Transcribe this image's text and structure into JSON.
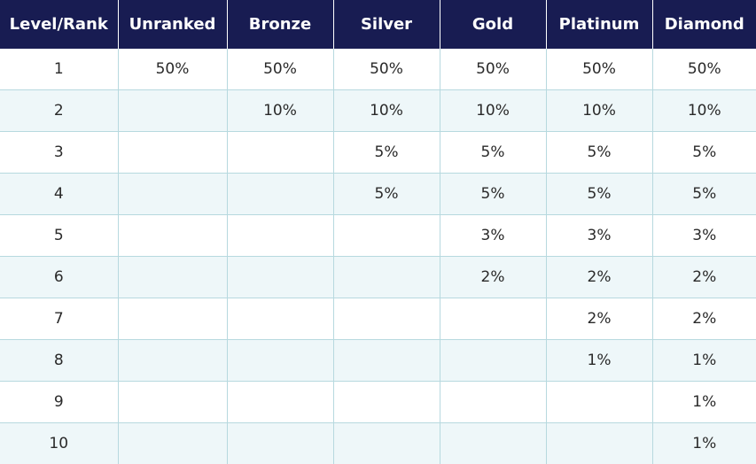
{
  "table": {
    "headers": [
      "Level/Rank",
      "Unranked",
      "Bronze",
      "Silver",
      "Gold",
      "Platinum",
      "Diamond"
    ],
    "rows": [
      [
        "1",
        "50%",
        "50%",
        "50%",
        "50%",
        "50%",
        "50%"
      ],
      [
        "2",
        "",
        "10%",
        "10%",
        "10%",
        "10%",
        "10%"
      ],
      [
        "3",
        "",
        "",
        "5%",
        "5%",
        "5%",
        "5%"
      ],
      [
        "4",
        "",
        "",
        "5%",
        "5%",
        "5%",
        "5%"
      ],
      [
        "5",
        "",
        "",
        "",
        "3%",
        "3%",
        "3%"
      ],
      [
        "6",
        "",
        "",
        "",
        "2%",
        "2%",
        "2%"
      ],
      [
        "7",
        "",
        "",
        "",
        "",
        "2%",
        "2%"
      ],
      [
        "8",
        "",
        "",
        "",
        "",
        "1%",
        "1%"
      ],
      [
        "9",
        "",
        "",
        "",
        "",
        "",
        "1%"
      ],
      [
        "10",
        "",
        "",
        "",
        "",
        "",
        "1%"
      ]
    ]
  },
  "colors": {
    "header_background": "#181c52",
    "header_text": "#ffffff",
    "stripe_row": "#eef7f9",
    "grid_line": "#b7d9df",
    "cell_text": "#2a2a2a"
  }
}
